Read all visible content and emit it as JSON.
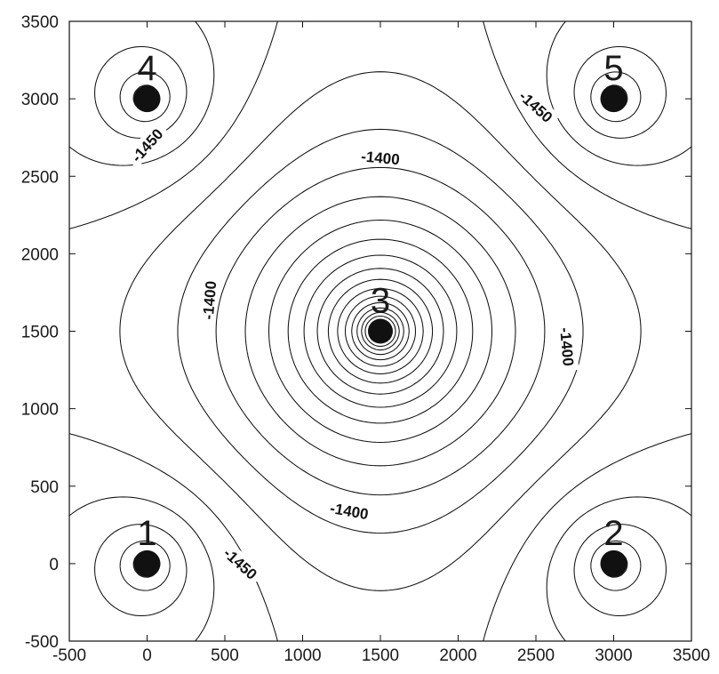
{
  "chart_data": {
    "type": "contour",
    "title": "",
    "xlabel": "",
    "ylabel": "",
    "xlim": [
      -500,
      3500
    ],
    "ylim": [
      -500,
      3500
    ],
    "x_ticks": [
      -500,
      0,
      500,
      1000,
      1500,
      2000,
      2500,
      3000,
      3500
    ],
    "y_ticks": [
      -500,
      0,
      500,
      1000,
      1500,
      2000,
      2500,
      3000,
      3500
    ],
    "grid": false,
    "wells": [
      {
        "label": "1",
        "x": 0,
        "y": 0
      },
      {
        "label": "2",
        "x": 3000,
        "y": 0
      },
      {
        "label": "3",
        "x": 1500,
        "y": 1500
      },
      {
        "label": "4",
        "x": 0,
        "y": 3000
      },
      {
        "label": "5",
        "x": 3000,
        "y": 3000
      }
    ],
    "contour_labels": [
      {
        "text": "-1450",
        "x": 0,
        "y": 2700,
        "angle": -48
      },
      {
        "text": "-1450",
        "x": 2500,
        "y": 2950,
        "angle": 42
      },
      {
        "text": "-1450",
        "x": 600,
        "y": 0,
        "angle": 42
      },
      {
        "text": "-1400",
        "x": 1500,
        "y": 2620,
        "angle": 5
      },
      {
        "text": "-1400",
        "x": 400,
        "y": 1700,
        "angle": -85
      },
      {
        "text": "-1400",
        "x": 2700,
        "y": 1400,
        "angle": 85
      },
      {
        "text": "-1400",
        "x": 1300,
        "y": 340,
        "angle": 10
      }
    ]
  }
}
